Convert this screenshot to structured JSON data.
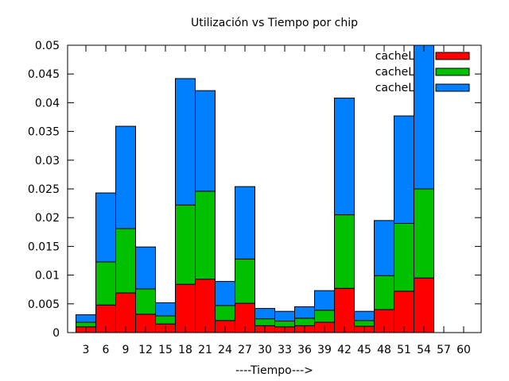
{
  "chart_data": {
    "type": "bar",
    "stacked": true,
    "title": "Utilización vs Tiempo por chip",
    "xlabel": "----Tiempo--->",
    "ylabel": "",
    "ylim": [
      0,
      0.05
    ],
    "y_ticks": [
      "0",
      "0.005",
      "0.01",
      "0.015",
      "0.02",
      "0.025",
      "0.03",
      "0.035",
      "0.04",
      "0.045",
      "0.05"
    ],
    "categories": [
      "3",
      "6",
      "9",
      "12",
      "15",
      "18",
      "21",
      "24",
      "27",
      "30",
      "33",
      "36",
      "39",
      "42",
      "45",
      "48",
      "51",
      "54",
      "57",
      "60"
    ],
    "legend_position": "top-right",
    "grid": false,
    "series": [
      {
        "name": "cacheL",
        "color": "#ff0000",
        "values": [
          0.001,
          0.0048,
          0.0069,
          0.0032,
          0.0015,
          0.0084,
          0.0093,
          0.0021,
          0.0051,
          0.0012,
          0.001,
          0.0012,
          0.0018,
          0.0077,
          0.0011,
          0.004,
          0.0072,
          0.0095,
          0,
          0
        ]
      },
      {
        "name": "cacheL",
        "color": "#00c000",
        "values": [
          0.0008,
          0.0075,
          0.0112,
          0.0044,
          0.0014,
          0.0138,
          0.0153,
          0.0026,
          0.0077,
          0.0012,
          0.001,
          0.0013,
          0.0021,
          0.0128,
          0.001,
          0.0059,
          0.0118,
          0.0155,
          0,
          0
        ]
      },
      {
        "name": "cacheL",
        "color": "#0080ff",
        "values": [
          0.0013,
          0.012,
          0.0178,
          0.0073,
          0.0023,
          0.022,
          0.0175,
          0.0042,
          0.0126,
          0.0018,
          0.0017,
          0.002,
          0.0034,
          0.0203,
          0.0016,
          0.0096,
          0.0187,
          0.025,
          0,
          0
        ]
      }
    ]
  }
}
